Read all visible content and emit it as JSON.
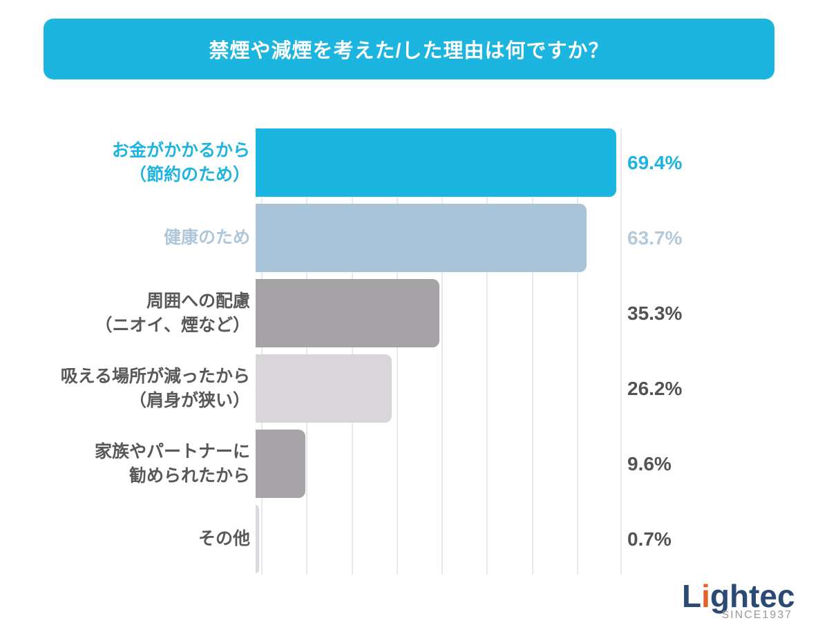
{
  "title": "禁煙や減煙を考えた/した理由は何ですか？",
  "colors": {
    "banner_bg": "#1cb5e0",
    "gridline": "#eae8ec",
    "dark_text": "#595759",
    "value_dark_text": "#545256",
    "logo_navy": "#2a4a73",
    "logo_orange": "#e2622b"
  },
  "chart_data": {
    "type": "bar",
    "orientation": "horizontal",
    "title": "禁煙や減煙を考えた/した理由は何ですか？",
    "categories": [
      "お金がかかるから（節約のため）",
      "健康のため",
      "周囲への配慮（ニオイ、煙など）",
      "吸える場所が減ったから（肩身が狭い）",
      "家族やパートナーに勧められたから",
      "その他"
    ],
    "values": [
      69.4,
      63.7,
      35.3,
      26.2,
      9.6,
      0.7
    ],
    "value_labels": [
      "69.4%",
      "63.7%",
      "35.3%",
      "26.2%",
      "9.6%",
      "0.7%"
    ],
    "xlabel": "",
    "ylabel": "",
    "xlim": [
      0,
      69.4
    ],
    "grid": "vertical gridlines, 8 equal divisions, no tick labels",
    "legend": "none"
  },
  "rows": [
    {
      "line1": "お金がかかるから",
      "line2": "（節約のため）",
      "value": "69.4%",
      "bar_color": "#1ab5e1",
      "text_color": "#1db4e0",
      "value_color": "#1db4e0"
    },
    {
      "line1": "健康のため",
      "line2": "",
      "value": "63.7%",
      "bar_color": "#a9c3d9",
      "text_color": "#b0c7da",
      "value_color": "#b4c9da"
    },
    {
      "line1": "周囲への配慮",
      "line2": "（ニオイ、煙など）",
      "value": "35.3%",
      "bar_color": "#a6a3a7",
      "text_color": "#595759",
      "value_color": "#545256"
    },
    {
      "line1": "吸える場所が減ったから",
      "line2": "（肩身が狭い）",
      "value": "26.2%",
      "bar_color": "#d8d6d9",
      "text_color": "#595759",
      "value_color": "#545256"
    },
    {
      "line1": "家族やパートナーに",
      "line2": "勧められたから",
      "value": "9.6%",
      "bar_color": "#a8a5a9",
      "text_color": "#595759",
      "value_color": "#545256"
    },
    {
      "line1": "その他",
      "line2": "",
      "value": "0.7%",
      "bar_color": "#dcdade",
      "text_color": "#595759",
      "value_color": "#545256"
    }
  ],
  "logo": {
    "part1": "L",
    "accent": "i",
    "part2": "ghtec",
    "tagline": "SINCE1937"
  }
}
